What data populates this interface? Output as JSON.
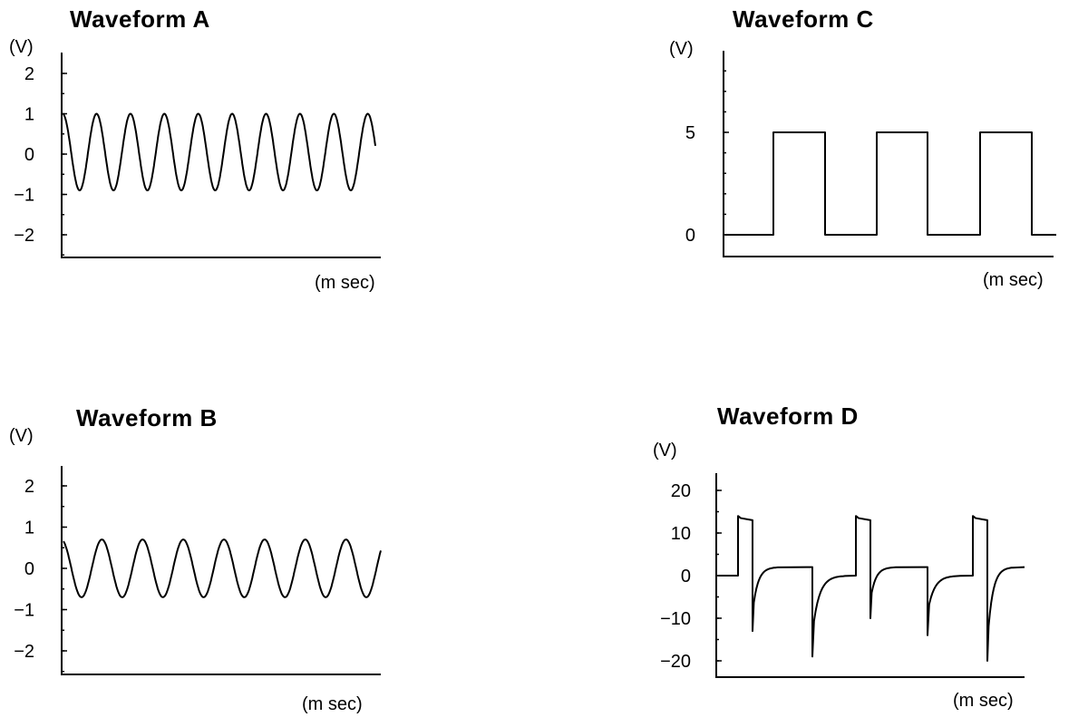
{
  "chart_data": [
    {
      "id": "A",
      "type": "line",
      "title": "Waveform  A",
      "ylabel": "(V)",
      "xlabel": "(m sec)",
      "ylim": [
        -2.5,
        2.5
      ],
      "yticks": [
        "2",
        "1",
        "0",
        "−1",
        "−2"
      ],
      "ytick_values": [
        2,
        1,
        0,
        -1,
        -2
      ],
      "waveform": {
        "kind": "sine",
        "amplitude_volts": 0.95,
        "offset_volts": 0.05,
        "cycles_shown": 9.2
      }
    },
    {
      "id": "B",
      "type": "line",
      "title": "Waveform  B",
      "ylabel": "(V)",
      "xlabel": "(m sec)",
      "ylim": [
        -2.5,
        2.5
      ],
      "yticks": [
        "2",
        "1",
        "0",
        "−1",
        "−2"
      ],
      "ytick_values": [
        2,
        1,
        0,
        -1,
        -2
      ],
      "waveform": {
        "kind": "sine",
        "amplitude_volts": 0.7,
        "offset_volts": 0.0,
        "cycles_shown": 7.8
      }
    },
    {
      "id": "C",
      "type": "line",
      "title": "Waveform  C",
      "ylabel": "(V)",
      "xlabel": "(m sec)",
      "ylim": [
        -1,
        9
      ],
      "yticks": [
        "5",
        "0"
      ],
      "ytick_values": [
        5,
        0
      ],
      "waveform": {
        "kind": "square",
        "low_volts": 0,
        "high_volts": 5,
        "pulses_shown": 3
      }
    },
    {
      "id": "D",
      "type": "line",
      "title": "Waveform  D",
      "ylabel": "(V)",
      "xlabel": "(m sec)",
      "ylim": [
        -25,
        25
      ],
      "yticks": [
        "20",
        "10",
        "0",
        "−10",
        "−20"
      ],
      "ytick_values": [
        20,
        10,
        0,
        -10,
        -20
      ],
      "waveform": {
        "kind": "spike-pulse",
        "baseline_volts": 0,
        "plateau_volts": 13,
        "settle_volts": 2,
        "negative_spike_volts": [
          -13,
          -19,
          -10,
          -14,
          -20
        ],
        "pulses_shown": 3
      }
    }
  ]
}
